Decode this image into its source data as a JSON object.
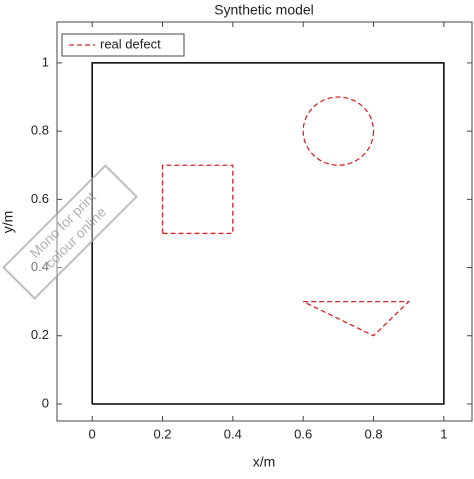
{
  "chart_data": {
    "type": "shapes",
    "title": "Synthetic model",
    "xlabel": "x/m",
    "ylabel": "y/m",
    "xlim": [
      -0.1,
      1.08
    ],
    "ylim": [
      -0.05,
      1.12
    ],
    "xticks": [
      0,
      0.2,
      0.4,
      0.6,
      0.8,
      1
    ],
    "yticks": [
      0,
      0.2,
      0.4,
      0.6,
      0.8,
      1
    ],
    "boundary": {
      "color": "#000000",
      "x": [
        0,
        1,
        1,
        0,
        0
      ],
      "y": [
        0,
        0,
        1,
        1,
        0
      ]
    },
    "series": [
      {
        "name": "real defect",
        "color": "#d62728",
        "dashed": true,
        "polygons": [
          {
            "x": [
              0.2,
              0.4,
              0.4,
              0.2,
              0.2
            ],
            "y": [
              0.5,
              0.5,
              0.7,
              0.7,
              0.5
            ]
          },
          {
            "x": [
              0.6,
              0.9,
              0.8,
              0.6
            ],
            "y": [
              0.3,
              0.3,
              0.2,
              0.3
            ]
          }
        ],
        "circles": [
          {
            "cx": 0.7,
            "cy": 0.8,
            "r": 0.1
          }
        ]
      }
    ],
    "legend": "top-left",
    "annotation": [
      "Mono for print",
      "colour online"
    ]
  }
}
